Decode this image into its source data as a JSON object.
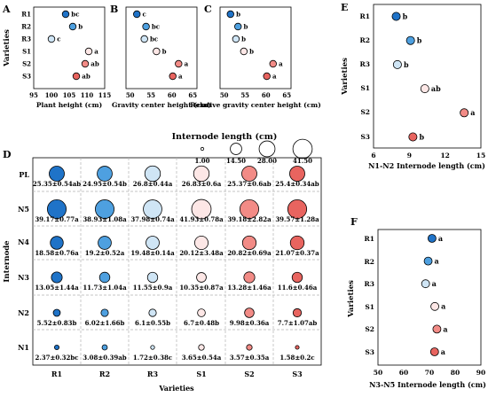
{
  "colors": {
    "R1": "#1f73c8",
    "R2": "#4ea0e0",
    "R3": "#cfe5f5",
    "S1": "#fde7e6",
    "S2": "#f28b86",
    "S3": "#e8645f",
    "grid": "#b4b4b4",
    "stroke": "#000000"
  },
  "row_label": "Varieties",
  "varieties": [
    "R1",
    "R2",
    "R3",
    "S1",
    "S2",
    "S3"
  ],
  "chart_data": [
    {
      "panel": "A",
      "type": "scatter",
      "xlabel": "Plant height (cm)",
      "xticks": [
        "95",
        "100",
        "105",
        "110",
        "115"
      ],
      "xlim": [
        95,
        115
      ],
      "values": [
        104,
        106,
        100,
        110.5,
        109.5,
        107
      ],
      "letters": [
        "bc",
        "b",
        "c",
        "a",
        "ab",
        "ab"
      ]
    },
    {
      "panel": "B",
      "type": "scatter",
      "xlabel": "Gravity center height (cm)",
      "xticks": [
        "50",
        "55",
        "60",
        "65"
      ],
      "xlim": [
        49,
        66
      ],
      "values": [
        51.6,
        53.8,
        53.4,
        56.3,
        61.6,
        60.2
      ],
      "letters": [
        "c",
        "bc",
        "bc",
        "b",
        "a",
        "a"
      ]
    },
    {
      "panel": "C",
      "type": "scatter",
      "xlabel": "Relative gravity center height (cm)",
      "xticks": [
        "50",
        "55",
        "60",
        "65"
      ],
      "xlim": [
        49,
        66
      ],
      "values": [
        51.5,
        53.3,
        52.8,
        54.7,
        61.7,
        60.2
      ],
      "letters": [
        "b",
        "b",
        "b",
        "b",
        "a",
        "a"
      ]
    },
    {
      "panel": "E",
      "type": "scatter",
      "xlabel": "N1-N2 Internode length (cm)",
      "xticks": [
        "6",
        "9",
        "12",
        "15"
      ],
      "xlim": [
        6,
        15
      ],
      "values": [
        7.9,
        9.1,
        8.0,
        10.3,
        13.6,
        9.3
      ],
      "letters": [
        "b",
        "b",
        "b",
        "ab",
        "a",
        "b"
      ]
    },
    {
      "panel": "F",
      "type": "scatter",
      "xlabel": "N3-N5 Internode length (cm)",
      "xticks": [
        "50",
        "60",
        "70",
        "80",
        "90"
      ],
      "xlim": [
        50,
        90
      ],
      "values": [
        71,
        69.5,
        68.5,
        72.1,
        72.9,
        72
      ],
      "letters": [
        "a",
        "a",
        "a",
        "a",
        "a",
        "a"
      ]
    },
    {
      "panel": "D",
      "type": "scatter",
      "subtype": "bubble",
      "xlabel": "Varieties",
      "ylabel": "Internode",
      "categories": [
        "R1",
        "R2",
        "R3",
        "S1",
        "S2",
        "S3"
      ],
      "rows": [
        "PL",
        "N5",
        "N4",
        "N3",
        "N2",
        "N1"
      ],
      "means": [
        [
          25.35,
          24.95,
          26.8,
          26.83,
          25.37,
          25.4
        ],
        [
          39.17,
          38.93,
          37.98,
          41.93,
          39.18,
          39.57
        ],
        [
          18.58,
          19.2,
          19.48,
          20.12,
          20.82,
          21.07
        ],
        [
          13.05,
          11.73,
          11.55,
          10.35,
          13.28,
          11.6
        ],
        [
          5.52,
          6.02,
          6.1,
          6.7,
          9.98,
          7.7
        ],
        [
          2.37,
          3.08,
          1.72,
          3.65,
          3.57,
          1.58
        ]
      ],
      "labels": [
        [
          "25.35±0.54ab",
          "24.95±0.54b",
          "26.8±0.44a",
          "26.83±0.6a",
          "25.37±0.6ab",
          "25.4±0.34ab"
        ],
        [
          "39.17±0.77a",
          "38.93±1.08a",
          "37.98±0.74a",
          "41.93±0.78a",
          "39.18±2.82a",
          "39.57±1.28a"
        ],
        [
          "18.58±0.76a",
          "19.2±0.52a",
          "19.48±0.14a",
          "20.12±3.48a",
          "20.82±0.69a",
          "21.07±0.37a"
        ],
        [
          "13.05±1.44a",
          "11.73±1.04a",
          "11.55±0.9a",
          "10.35±0.87a",
          "13.28±1.46a",
          "11.6±0.46a"
        ],
        [
          "5.52±0.83b",
          "6.02±1.66b",
          "6.1±0.55b",
          "6.7±0.48b",
          "9.98±0.36a",
          "7.7±1.07ab"
        ],
        [
          "2.37±0.32bc",
          "3.08±0.39ab",
          "1.72±0.38c",
          "3.65±0.54a",
          "3.57±0.35a",
          "1.58±0.2c"
        ]
      ]
    }
  ],
  "legend": {
    "title": "Internode length (cm)",
    "values": [
      1.0,
      14.5,
      28.0,
      41.5
    ],
    "labels": [
      "1.00",
      "14.50",
      "28.00",
      "41.50"
    ]
  }
}
